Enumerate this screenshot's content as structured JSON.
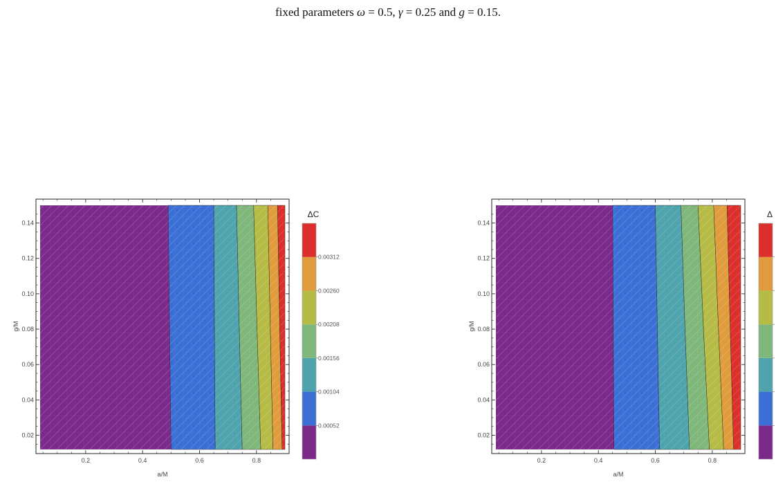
{
  "caption": {
    "prefix": "fixed parameters ",
    "omega_sym": "ω",
    "omega_val": " = 0.5, ",
    "gamma_sym": "γ",
    "gamma_val": " = 0.25 and ",
    "g_sym": "g",
    "g_val": " = 0.15."
  },
  "colors": {
    "level_0": "#7b2a8a",
    "level_1": "#3b6fd6",
    "level_2": "#4ea3ad",
    "level_3": "#7fb77a",
    "level_4": "#b6bb46",
    "level_5": "#e09c3c",
    "level_6": "#dc2e2a"
  },
  "chart_data": [
    {
      "type": "heatmap",
      "xlabel": "a/M",
      "ylabel": "g/M",
      "xlim": [
        0.04,
        0.9
      ],
      "ylim": [
        0.012,
        0.15
      ],
      "xticks": [
        "0.2",
        "0.4",
        "0.6",
        "0.8"
      ],
      "xtick_values": [
        0.2,
        0.4,
        0.6,
        0.8
      ],
      "yticks": [
        "0.02",
        "0.04",
        "0.06",
        "0.08",
        "0.10",
        "0.12",
        "0.14"
      ],
      "ytick_values": [
        0.02,
        0.04,
        0.06,
        0.08,
        0.1,
        0.12,
        0.14
      ],
      "legend_title": "ΔC",
      "legend_labels": [
        "0.00052",
        "0.00104",
        "0.00156",
        "0.00208",
        "0.00260",
        "0.00312"
      ],
      "contour_boundaries_top": [
        0.49,
        0.65,
        0.73,
        0.79,
        0.84,
        0.874
      ],
      "contour_boundaries_bottom": [
        0.5,
        0.655,
        0.75,
        0.815,
        0.858,
        0.89
      ]
    },
    {
      "type": "heatmap",
      "xlabel": "a/M",
      "ylabel": "g/M",
      "xlim": [
        0.04,
        0.9
      ],
      "ylim": [
        0.012,
        0.15
      ],
      "xticks": [
        "0.2",
        "0.4",
        "0.6",
        "0.8"
      ],
      "xtick_values": [
        0.2,
        0.4,
        0.6,
        0.8
      ],
      "yticks": [
        "0.02",
        "0.04",
        "0.06",
        "0.08",
        "0.10",
        "0.12",
        "0.14"
      ],
      "ytick_values": [
        0.02,
        0.04,
        0.06,
        0.08,
        0.1,
        0.12,
        0.14
      ],
      "legend_title": "Δ",
      "legend_labels": [],
      "contour_boundaries_top": [
        0.45,
        0.6,
        0.69,
        0.75,
        0.805,
        0.852
      ],
      "contour_boundaries_bottom": [
        0.455,
        0.615,
        0.72,
        0.79,
        0.84,
        0.875
      ]
    }
  ]
}
